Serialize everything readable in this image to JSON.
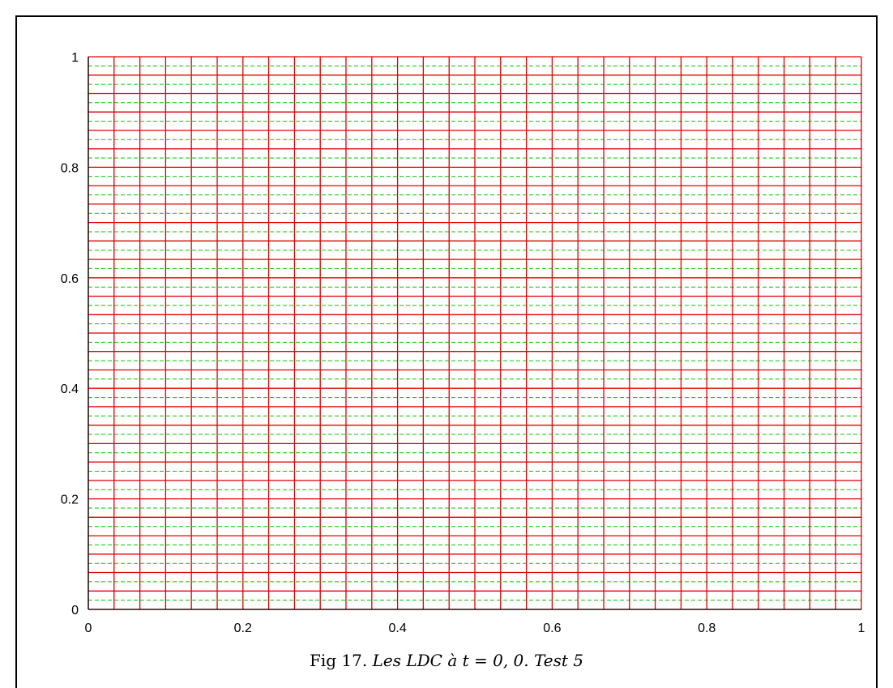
{
  "chart_data": {
    "type": "line",
    "title": "",
    "xlabel": "",
    "ylabel": "",
    "xlim": [
      0,
      1
    ],
    "ylim": [
      0,
      1
    ],
    "xticks": [
      "0",
      "0.2",
      "0.4",
      "0.6",
      "0.8",
      "1"
    ],
    "yticks": [
      "0",
      "0.2",
      "0.4",
      "0.6",
      "0.8",
      "1"
    ],
    "grid": false,
    "series": [
      {
        "color": "#e00000",
        "style": "solid",
        "vertical_lines_x": [
          0,
          0.0333,
          0.0667,
          0.1,
          0.1333,
          0.1667,
          0.2,
          0.2333,
          0.2667,
          0.3,
          0.3333,
          0.3667,
          0.4,
          0.4333,
          0.4667,
          0.5,
          0.5333,
          0.5667,
          0.6,
          0.6333,
          0.6667,
          0.7,
          0.7333,
          0.7667,
          0.8,
          0.8333,
          0.8667,
          0.9,
          0.9333,
          0.9667,
          1
        ],
        "horizontal_lines_y": [
          0,
          0.0333,
          0.0667,
          0.1,
          0.1333,
          0.1667,
          0.2,
          0.2333,
          0.2667,
          0.3,
          0.3333,
          0.3667,
          0.4,
          0.4333,
          0.4667,
          0.5,
          0.5333,
          0.5667,
          0.6,
          0.6333,
          0.6667,
          0.7,
          0.7333,
          0.7667,
          0.8,
          0.8333,
          0.8667,
          0.9,
          0.9333,
          0.9667,
          1
        ]
      },
      {
        "color": "#00c800",
        "style": "dashed",
        "horizontal_lines_y": [
          0.0167,
          0.05,
          0.0833,
          0.1167,
          0.15,
          0.1833,
          0.2167,
          0.25,
          0.2833,
          0.3167,
          0.35,
          0.3833,
          0.4167,
          0.45,
          0.4833,
          0.5167,
          0.55,
          0.5833,
          0.6167,
          0.65,
          0.6833,
          0.7167,
          0.75,
          0.7833,
          0.8167,
          0.85,
          0.8833,
          0.9167,
          0.95,
          0.9833
        ]
      }
    ]
  },
  "caption": {
    "prefix": "Fig 17.",
    "text": "Les LDC à t = 0, 0. Test 5"
  }
}
